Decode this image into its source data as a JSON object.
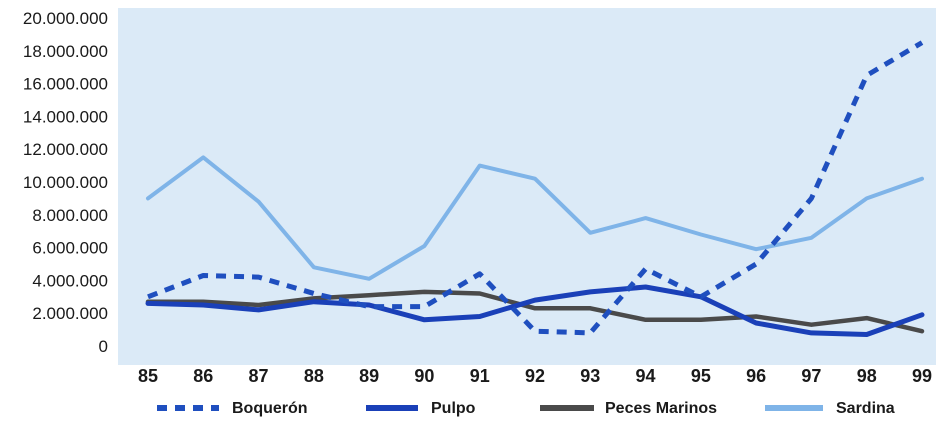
{
  "chart_data": {
    "type": "line",
    "title": "",
    "xlabel": "",
    "ylabel": "",
    "categories": [
      "85",
      "86",
      "87",
      "88",
      "89",
      "90",
      "91",
      "92",
      "93",
      "94",
      "95",
      "96",
      "97",
      "98",
      "99"
    ],
    "y_tick_labels": [
      "0",
      "2.000.000",
      "4.000.000",
      "6.000.000",
      "8.000.000",
      "10.000.000",
      "12.000.000",
      "14.000.000",
      "16.000.000",
      "18.000.000",
      "20.000.000"
    ],
    "ylim": [
      0,
      20000000
    ],
    "grid": false,
    "legend_position": "bottom",
    "series": [
      {
        "name": "Boquerón",
        "style": "dashed",
        "color": "#1f4fbf",
        "values": [
          3000000,
          4300000,
          4200000,
          3200000,
          2400000,
          2400000,
          4400000,
          900000,
          800000,
          4700000,
          3000000,
          5000000,
          9000000,
          16500000,
          18500000
        ]
      },
      {
        "name": "Pulpo",
        "style": "solid",
        "color": "#1a40b8",
        "values": [
          2600000,
          2500000,
          2200000,
          2700000,
          2500000,
          1600000,
          1800000,
          2800000,
          3300000,
          3600000,
          3000000,
          1400000,
          800000,
          700000,
          1900000
        ]
      },
      {
        "name": "Peces Marinos",
        "style": "solid",
        "color": "#4a4a4a",
        "values": [
          2700000,
          2700000,
          2500000,
          2900000,
          3100000,
          3300000,
          3200000,
          2300000,
          2300000,
          1600000,
          1600000,
          1800000,
          1300000,
          1700000,
          900000
        ]
      },
      {
        "name": "Sardina",
        "style": "solid",
        "color": "#7fb4e8",
        "values": [
          9000000,
          11500000,
          8800000,
          4800000,
          4100000,
          6100000,
          11000000,
          10200000,
          6900000,
          7800000,
          6800000,
          5900000,
          6600000,
          9000000,
          10200000
        ]
      }
    ]
  },
  "colors": {
    "plot_background": "#dbeaf7",
    "boqueron": "#1f4fbf",
    "pulpo": "#1a40b8",
    "peces_marinos": "#4a4a4a",
    "sardina": "#7fb4e8"
  }
}
